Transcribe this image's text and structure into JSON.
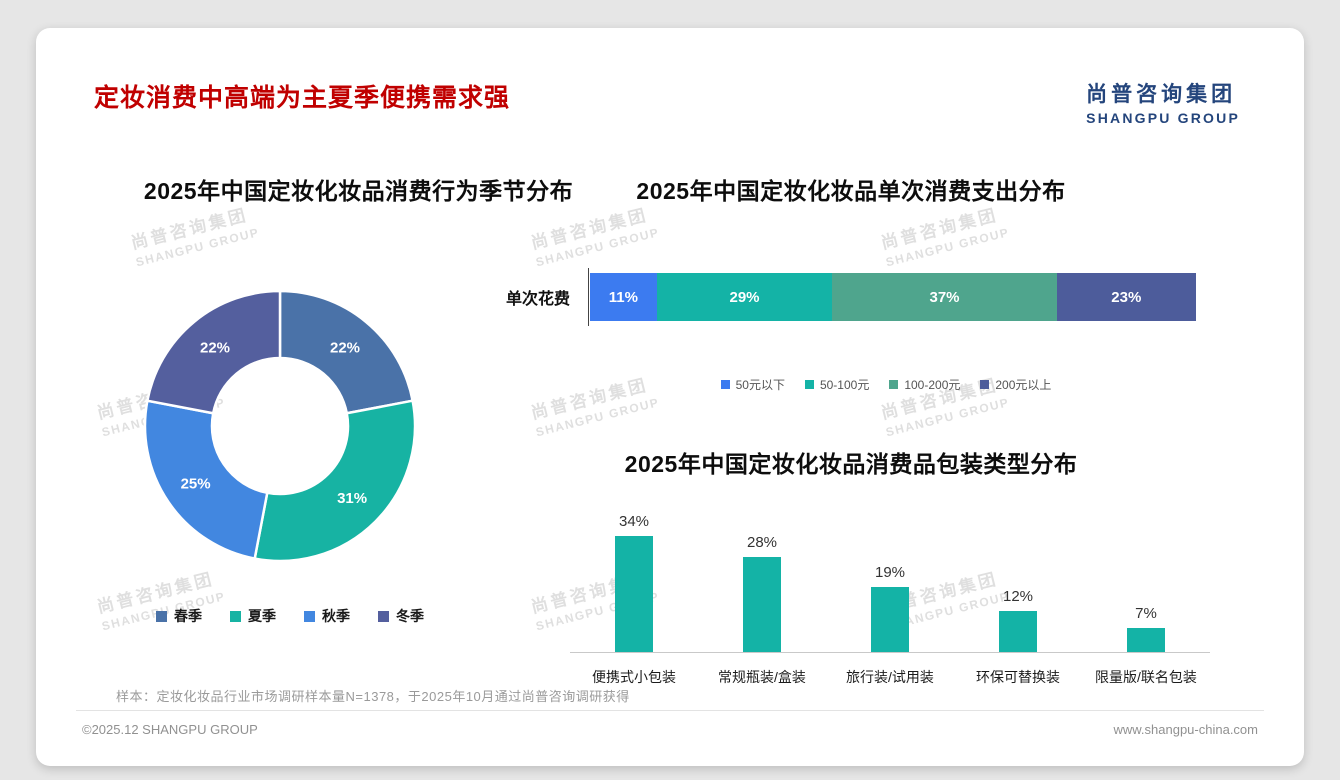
{
  "page": {
    "title": "定妆消费中高端为主夏季便携需求强",
    "logo": {
      "cn": "尚普咨询集团",
      "en": "SHANGPU GROUP"
    },
    "watermark": {
      "cn": "尚普咨询集团",
      "en": "SHANGPU GROUP"
    },
    "note": "样本：定妆化妆品行业市场调研样本量N=1378，于2025年10月通过尚普咨询调研获得",
    "footer": {
      "left": "©2025.12 SHANGPU GROUP",
      "right": "www.shangpu-china.com"
    }
  },
  "chart_data": [
    {
      "type": "pie",
      "subtype": "donut",
      "title": "2025年中国定妆化妆品消费行为季节分布",
      "categories": [
        "春季",
        "夏季",
        "秋季",
        "冬季"
      ],
      "values": [
        22,
        31,
        25,
        22
      ],
      "labels": [
        "22%",
        "31%",
        "25%",
        "22%"
      ],
      "colors": [
        "#4a72a8",
        "#17b3a3",
        "#4287e0",
        "#545f9e"
      ],
      "start_angle_deg": -90,
      "direction": "clockwise",
      "legend_position": "bottom"
    },
    {
      "type": "bar",
      "subtype": "horizontal-stacked",
      "title": "2025年中国定妆化妆品单次消费支出分布",
      "row_label": "单次花费",
      "segments": [
        {
          "name": "50元以下",
          "value": 11,
          "label": "11%",
          "color": "#3c7bf0"
        },
        {
          "name": "50-100元",
          "value": 29,
          "label": "29%",
          "color": "#14b3a6"
        },
        {
          "name": "100-200元",
          "value": 37,
          "label": "37%",
          "color": "#4fa58d"
        },
        {
          "name": "200元以上",
          "value": 23,
          "label": "23%",
          "color": "#4d5c9b"
        }
      ],
      "xlim": [
        0,
        100
      ],
      "legend_position": "bottom"
    },
    {
      "type": "bar",
      "subtype": "vertical",
      "title": "2025年中国定妆化妆品消费品包装类型分布",
      "categories": [
        "便携式小包装",
        "常规瓶装/盒装",
        "旅行装/试用装",
        "环保可替换装",
        "限量版/联名包装"
      ],
      "values": [
        34,
        28,
        19,
        12,
        7
      ],
      "labels": [
        "34%",
        "28%",
        "19%",
        "12%",
        "7%"
      ],
      "bar_color": "#14b3a6",
      "ylim": [
        0,
        40
      ],
      "grid": false
    }
  ]
}
